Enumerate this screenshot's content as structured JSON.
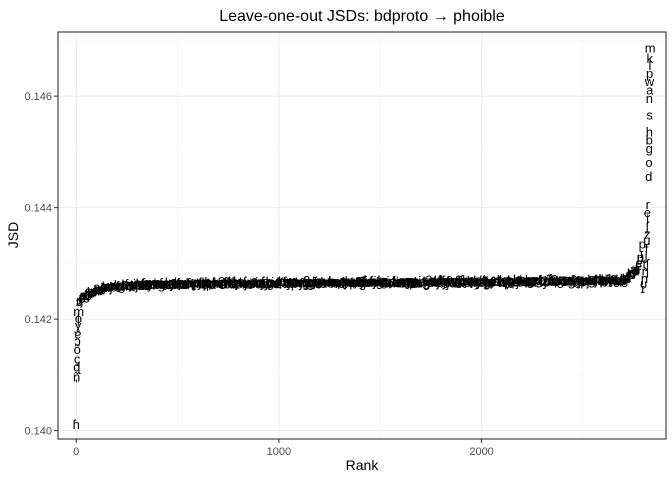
{
  "chart_data": {
    "type": "scatter",
    "title": "Leave-one-out JSDs: bdproto → phoible",
    "xlabel": "Rank",
    "ylabel": "JSD",
    "xlim": [
      -90,
      2910
    ],
    "ylim": [
      0.13985,
      0.14715
    ],
    "x_ticks": [
      0,
      1000,
      2000
    ],
    "x_tick_labels": [
      "0",
      "1000",
      "2000"
    ],
    "y_ticks": [
      0.14,
      0.142,
      0.144,
      0.146
    ],
    "y_tick_labels": [
      "0.140",
      "0.142",
      "0.144",
      "0.146"
    ],
    "grid": true,
    "legend": "none",
    "point_marker": "phoneme text labels",
    "n_points": 2830,
    "curve_summary": {
      "x": [
        1,
        5,
        15,
        30,
        60,
        100,
        200,
        400,
        1000,
        2000,
        2700,
        2740,
        2770,
        2790,
        2800,
        2810
      ],
      "y": [
        0.1401,
        0.1415,
        0.1423,
        0.1424,
        0.14245,
        0.14252,
        0.1426,
        0.14263,
        0.14265,
        0.14267,
        0.1427,
        0.1428,
        0.1429,
        0.1432,
        0.1436,
        0.1439
      ]
    },
    "labeled_extremes": [
      {
        "label": "m",
        "x": 2832,
        "y": 0.14685
      },
      {
        "label": "k",
        "x": 2830,
        "y": 0.14667
      },
      {
        "label": "l",
        "x": 2831,
        "y": 0.14654
      },
      {
        "label": "p",
        "x": 2829,
        "y": 0.1464
      },
      {
        "label": "w",
        "x": 2828,
        "y": 0.14625
      },
      {
        "label": "a",
        "x": 2830,
        "y": 0.1461
      },
      {
        "label": "n",
        "x": 2828,
        "y": 0.14595
      },
      {
        "label": "s",
        "x": 2829,
        "y": 0.14565
      },
      {
        "label": "h",
        "x": 2828,
        "y": 0.14535
      },
      {
        "label": "b",
        "x": 2827,
        "y": 0.1452
      },
      {
        "label": "g",
        "x": 2827,
        "y": 0.14505
      },
      {
        "label": "o",
        "x": 2826,
        "y": 0.1448
      },
      {
        "label": "d",
        "x": 2825,
        "y": 0.14455
      },
      {
        "label": "r",
        "x": 2820,
        "y": 0.14405
      },
      {
        "label": "e",
        "x": 2818,
        "y": 0.1439
      },
      {
        "label": "i",
        "x": 2819,
        "y": 0.14378
      },
      {
        "label": "ʃ",
        "x": 2817,
        "y": 0.14365
      },
      {
        "label": "z",
        "x": 2818,
        "y": 0.14352
      },
      {
        "label": "u",
        "x": 2816,
        "y": 0.1434
      },
      {
        "label": "f",
        "x": 2814,
        "y": 0.14325
      },
      {
        "label": "j",
        "x": 2812,
        "y": 0.14312
      },
      {
        "label": "tʃ",
        "x": 2810,
        "y": 0.14298
      },
      {
        "label": "ŋ",
        "x": 2808,
        "y": 0.14285
      },
      {
        "label": "ɲ",
        "x": 2804,
        "y": 0.14272
      },
      {
        "label": "ʋ",
        "x": 2800,
        "y": 0.14262
      },
      {
        "label": "ɪ",
        "x": 2795,
        "y": 0.14254
      },
      {
        "label": "m̃",
        "x": 12,
        "y": 0.14213
      },
      {
        "label": "ɸ",
        "x": 10,
        "y": 0.142
      },
      {
        "label": "ɣ",
        "x": 9,
        "y": 0.14188
      },
      {
        "label": "ɐ",
        "x": 7,
        "y": 0.14172
      },
      {
        "label": "ɔ",
        "x": 6,
        "y": 0.1416
      },
      {
        "label": "õ",
        "x": 5,
        "y": 0.14145
      },
      {
        "label": "ç",
        "x": 4,
        "y": 0.14128
      },
      {
        "label": "ɖ",
        "x": 3,
        "y": 0.14113
      },
      {
        "label": "ñ",
        "x": 2,
        "y": 0.14095
      },
      {
        "label": "ʼ",
        "x": 1,
        "y": 0.14082
      },
      {
        "label": "ɦ",
        "x": 0,
        "y": 0.1401
      }
    ],
    "marker_glyphs": [
      "p",
      "t",
      "k",
      "b",
      "d",
      "g",
      "m",
      "n",
      "s",
      "z",
      "f",
      "v",
      "l",
      "r",
      "j",
      "w",
      "h",
      "a",
      "e",
      "i",
      "o",
      "u",
      "ə",
      "ɛ",
      "ɔ",
      "ŋ",
      "ʃ",
      "ʒ",
      "ɲ",
      "ɣ",
      "ʔ",
      "ɦ",
      "ʋ",
      "ɪ",
      "ʊ",
      "ɐ"
    ]
  }
}
